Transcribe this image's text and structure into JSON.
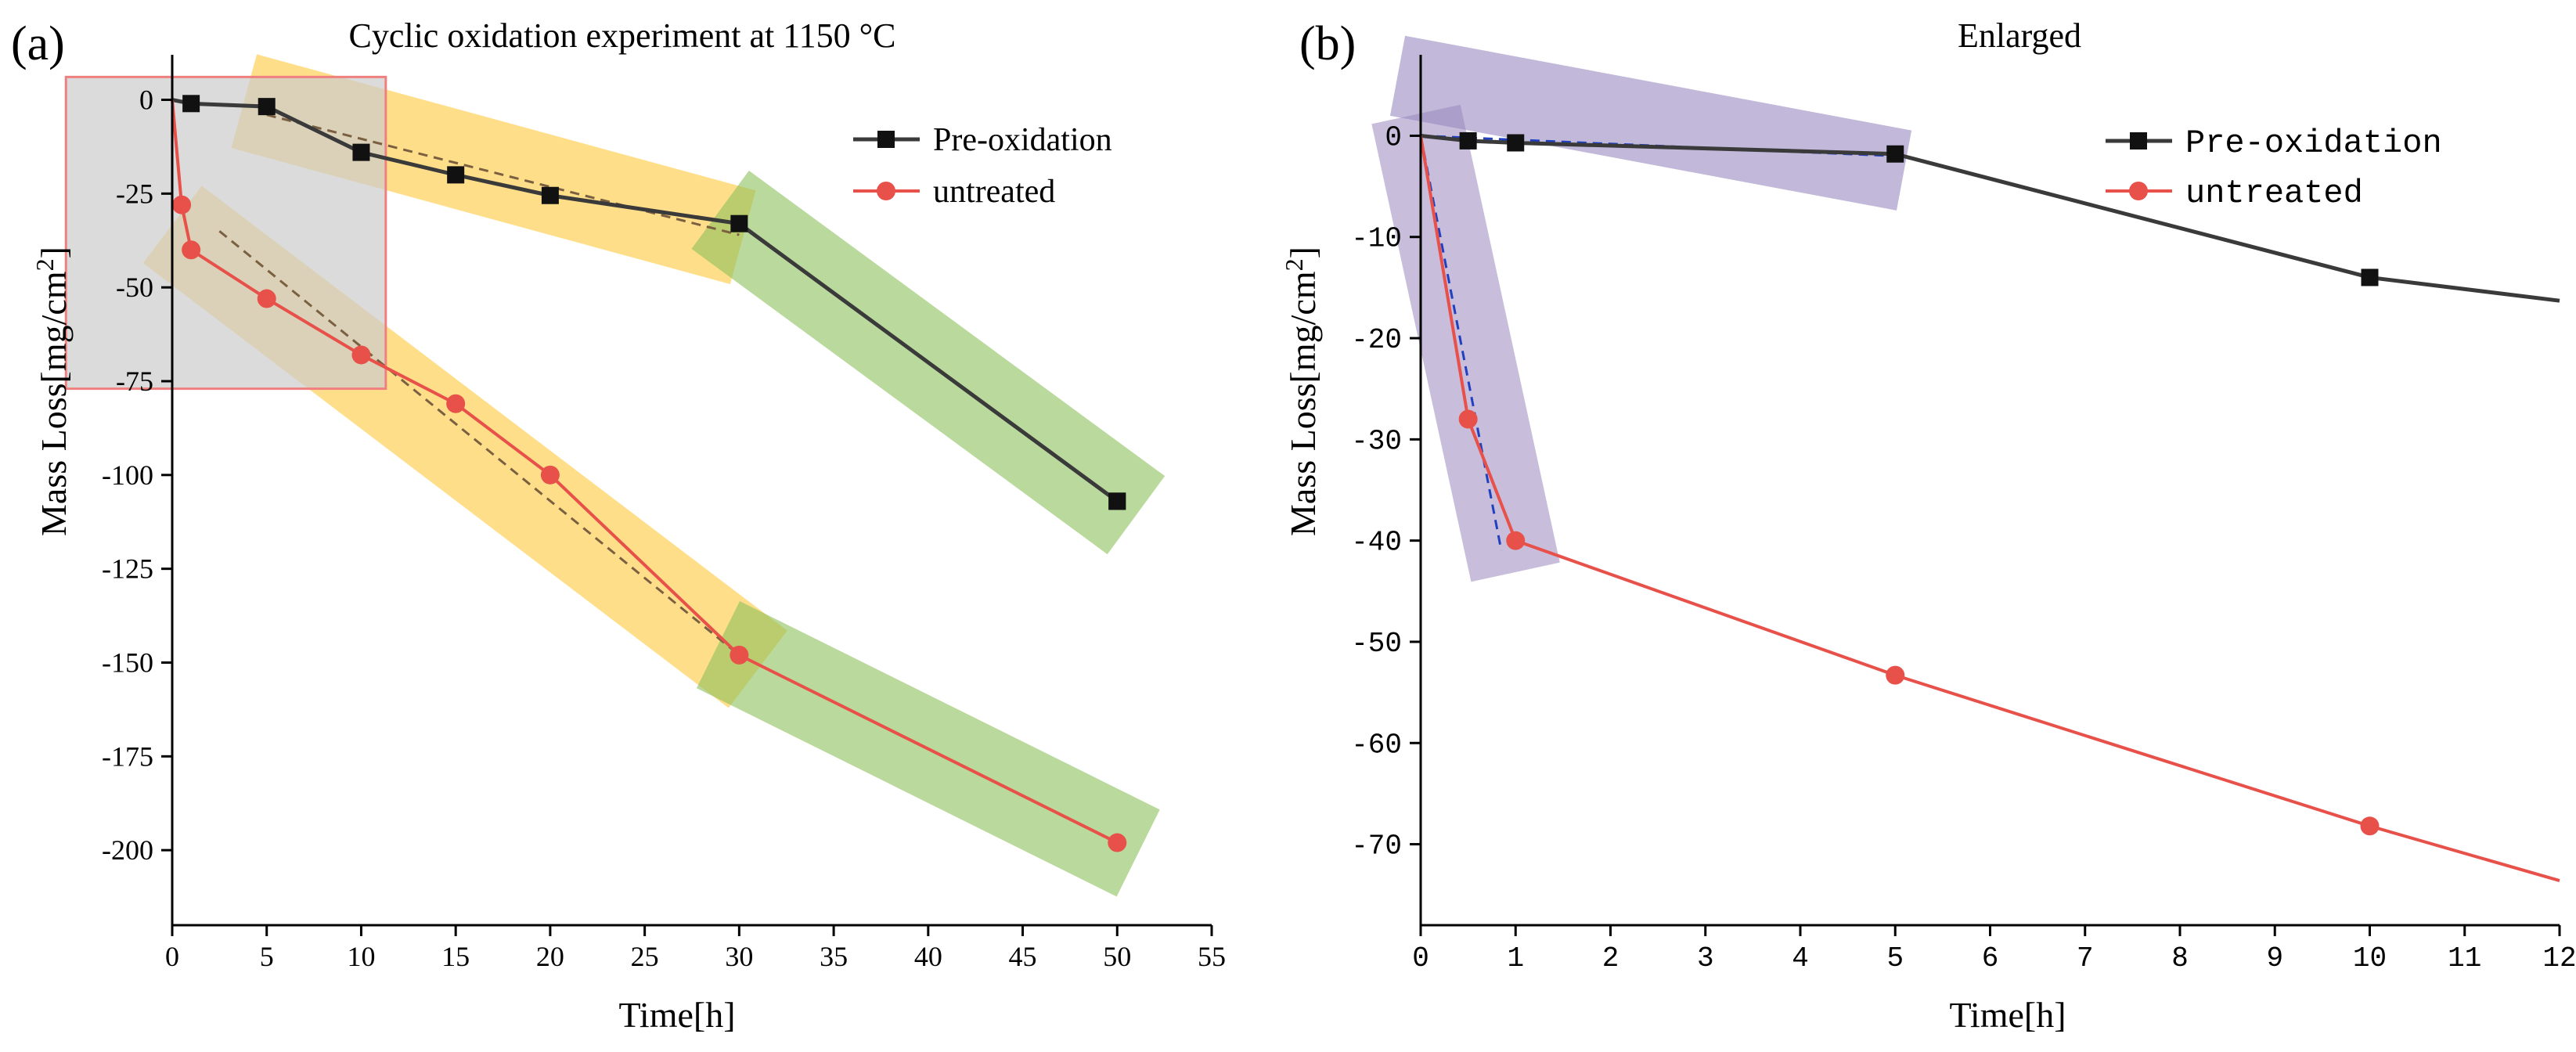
{
  "chart_data": [
    {
      "panel_label": "(a)",
      "type": "line",
      "title": "Cyclic oxidation experiment at 1150 °C",
      "xlabel": "Time[h]",
      "ylabel_main": "Mass Loss[mg/cm",
      "ylabel_sup": "2",
      "ylabel_close": "]",
      "xlim": [
        0,
        55
      ],
      "ylim": [
        -220,
        12
      ],
      "xticks": [
        0,
        5,
        10,
        15,
        20,
        25,
        30,
        35,
        40,
        45,
        50,
        55
      ],
      "yticks": [
        0,
        -25,
        -50,
        -75,
        -100,
        -125,
        -150,
        -175,
        -200
      ],
      "series": [
        {
          "name": "Pre-oxidation",
          "color": "#3a3a3a",
          "marker": "square",
          "x": [
            0,
            1,
            5,
            10,
            15,
            20,
            30,
            50
          ],
          "y": [
            0,
            -1,
            -1.8,
            -14,
            -20,
            -25.5,
            -33,
            -107
          ]
        },
        {
          "name": "untreated",
          "color": "#e8504a",
          "marker": "circle",
          "x": [
            0,
            0.5,
            1,
            5,
            10,
            15,
            20,
            30,
            50
          ],
          "y": [
            0,
            -28,
            -40,
            -53,
            -68,
            -81,
            -100,
            -148,
            -198
          ]
        }
      ],
      "fit_lines": [
        {
          "color": "#7a6040",
          "x": [
            5,
            30
          ],
          "y": [
            -4,
            -36
          ]
        },
        {
          "color": "#7a6040",
          "x": [
            2.5,
            30
          ],
          "y": [
            -35,
            -148
          ]
        },
        {
          "color": "#2040c0",
          "x": [
            30,
            50
          ],
          "y": [
            -148,
            -198
          ]
        }
      ],
      "highlight_bands": [
        {
          "color": "#ffc83c",
          "x": [
            5,
            29
          ],
          "y": [
            -2,
            -35
          ]
        },
        {
          "color": "#ffc83c",
          "x": [
            1,
            30
          ],
          "y": [
            -37,
            -148
          ]
        },
        {
          "color": "#8cbf5a",
          "x": [
            30,
            50
          ],
          "y": [
            -33,
            -107
          ]
        },
        {
          "color": "#8cbf5a",
          "x": [
            30,
            50
          ],
          "y": [
            -148,
            -198
          ]
        }
      ],
      "highlight_box": {
        "x": [
          -5,
          11.3
        ],
        "y": [
          -77,
          4
        ]
      },
      "legend_position": "top-right"
    },
    {
      "panel_label": "(b)",
      "type": "line",
      "title": "Enlarged",
      "xlabel": "Time[h]",
      "ylabel_main": "Mass Loss[mg/cm",
      "ylabel_sup": "2",
      "ylabel_close": "]",
      "xlim": [
        0,
        12
      ],
      "ylim": [
        -78,
        8
      ],
      "xticks": [
        0,
        1,
        2,
        3,
        4,
        5,
        6,
        7,
        8,
        9,
        10,
        11,
        12
      ],
      "yticks": [
        0,
        -10,
        -20,
        -30,
        -40,
        -50,
        -60,
        -70
      ],
      "series": [
        {
          "name": "Pre-oxidation",
          "color": "#3a3a3a",
          "marker": "square",
          "x": [
            0,
            0.5,
            1,
            5,
            10,
            12
          ],
          "y": [
            0,
            -0.5,
            -0.7,
            -1.8,
            -14,
            -16.3
          ]
        },
        {
          "name": "untreated",
          "color": "#e8504a",
          "marker": "circle",
          "x": [
            0,
            0.5,
            1,
            5,
            10,
            12
          ],
          "y": [
            0,
            -28,
            -40,
            -53.3,
            -68.2,
            -73.6
          ]
        }
      ],
      "fit_lines": [
        {
          "color": "#2040c0",
          "x": [
            0,
            5
          ],
          "y": [
            0,
            -2
          ]
        },
        {
          "color": "#2040c0",
          "x": [
            0,
            0.85
          ],
          "y": [
            0,
            -41
          ]
        }
      ],
      "highlight_bands": [
        {
          "color": "#9a88c0",
          "x": [
            0,
            4.85
          ],
          "y": [
            5.5,
            -3
          ]
        }
      ],
      "legend_position": "top-right"
    }
  ]
}
